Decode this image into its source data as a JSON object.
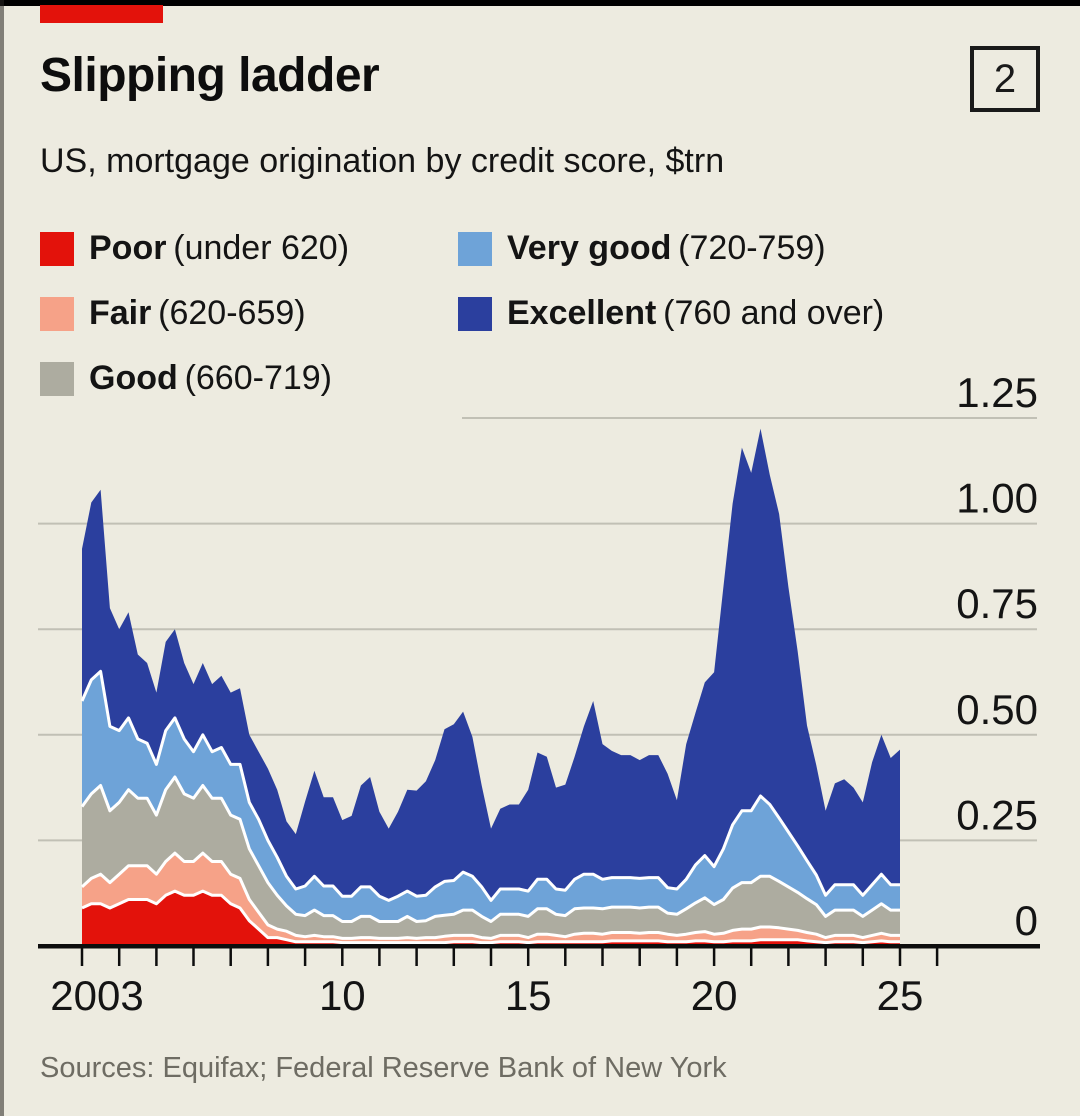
{
  "header": {
    "title": "Slipping ladder",
    "subtitle": "US, mortgage origination by credit score, $trn",
    "figure_number": "2",
    "tag_color": "#E3120B",
    "background_color": "#EDEBE0"
  },
  "source_line": "Sources: Equifax; Federal Reserve Bank of New York",
  "legend": [
    {
      "label": "Poor",
      "range": "(under 620)",
      "color": "#E3120B",
      "col": 0,
      "row": 0
    },
    {
      "label": "Fair",
      "range": "(620-659)",
      "color": "#F6A288",
      "col": 0,
      "row": 1
    },
    {
      "label": "Good",
      "range": "(660-719)",
      "color": "#ADACA0",
      "col": 0,
      "row": 2
    },
    {
      "label": "Very good",
      "range": "(720-759)",
      "color": "#6EA3D8",
      "col": 1,
      "row": 0
    },
    {
      "label": "Excellent",
      "range": "(760 and over)",
      "color": "#2B3F9E",
      "col": 1,
      "row": 1
    }
  ],
  "chart_data": {
    "type": "area",
    "stacked": true,
    "title": "Slipping ladder",
    "subtitle": "US, mortgage origination by credit score, $trn",
    "unit": "$trn per quarter",
    "x_start_year": 2003,
    "x_step_years": 0.25,
    "x_end_year": 2025.0,
    "xlim": [
      2003,
      2026
    ],
    "ylim": [
      0,
      1.25
    ],
    "grid": true,
    "legend_position": "top-left",
    "y_ticks": [
      {
        "v": 1.25,
        "label": "1.25"
      },
      {
        "v": 1.0,
        "label": "1.00"
      },
      {
        "v": 0.75,
        "label": "0.75"
      },
      {
        "v": 0.5,
        "label": "0.50"
      },
      {
        "v": 0.25,
        "label": "0.25"
      },
      {
        "v": 0,
        "label": "0"
      }
    ],
    "x_tick_range": [
      2003,
      2026
    ],
    "x_axis_labels": [
      {
        "year": 2003,
        "label": "2003",
        "dx": 15
      },
      {
        "year": 2010,
        "label": "10",
        "dx": 0
      },
      {
        "year": 2015,
        "label": "15",
        "dx": 0
      },
      {
        "year": 2020,
        "label": "20",
        "dx": 0
      },
      {
        "year": 2025,
        "label": "25",
        "dx": 0
      }
    ],
    "separator_color": "#FFFFFF",
    "series": [
      {
        "name": "Poor (under 620)",
        "color": "#E3120B",
        "values": [
          0.09,
          0.1,
          0.1,
          0.09,
          0.1,
          0.11,
          0.11,
          0.11,
          0.1,
          0.12,
          0.13,
          0.12,
          0.12,
          0.13,
          0.12,
          0.12,
          0.1,
          0.09,
          0.06,
          0.04,
          0.02,
          0.02,
          0.015,
          0.01,
          0.01,
          0.01,
          0.01,
          0.01,
          0.008,
          0.008,
          0.008,
          0.008,
          0.008,
          0.008,
          0.008,
          0.008,
          0.008,
          0.008,
          0.008,
          0.008,
          0.01,
          0.01,
          0.01,
          0.008,
          0.008,
          0.01,
          0.01,
          0.01,
          0.008,
          0.01,
          0.01,
          0.01,
          0.01,
          0.01,
          0.01,
          0.01,
          0.01,
          0.012,
          0.012,
          0.012,
          0.012,
          0.012,
          0.012,
          0.01,
          0.01,
          0.01,
          0.012,
          0.012,
          0.01,
          0.01,
          0.012,
          0.012,
          0.012,
          0.015,
          0.015,
          0.015,
          0.015,
          0.015,
          0.012,
          0.01,
          0.008,
          0.01,
          0.01,
          0.01,
          0.008,
          0.01,
          0.012,
          0.01,
          0.01
        ]
      },
      {
        "name": "Fair (620-659)",
        "color": "#F6A288",
        "values": [
          0.05,
          0.06,
          0.07,
          0.06,
          0.07,
          0.08,
          0.08,
          0.08,
          0.07,
          0.08,
          0.09,
          0.08,
          0.08,
          0.09,
          0.08,
          0.08,
          0.07,
          0.07,
          0.05,
          0.04,
          0.03,
          0.02,
          0.02,
          0.015,
          0.012,
          0.015,
          0.012,
          0.012,
          0.01,
          0.01,
          0.012,
          0.012,
          0.01,
          0.01,
          0.01,
          0.012,
          0.01,
          0.012,
          0.012,
          0.015,
          0.015,
          0.015,
          0.015,
          0.012,
          0.01,
          0.015,
          0.015,
          0.015,
          0.012,
          0.018,
          0.018,
          0.015,
          0.012,
          0.018,
          0.02,
          0.02,
          0.018,
          0.02,
          0.02,
          0.02,
          0.018,
          0.02,
          0.02,
          0.018,
          0.015,
          0.018,
          0.02,
          0.022,
          0.018,
          0.02,
          0.025,
          0.028,
          0.028,
          0.03,
          0.03,
          0.028,
          0.025,
          0.022,
          0.02,
          0.018,
          0.012,
          0.015,
          0.015,
          0.015,
          0.012,
          0.015,
          0.018,
          0.015,
          0.015
        ]
      },
      {
        "name": "Good (660-719)",
        "color": "#ADACA0",
        "values": [
          0.19,
          0.2,
          0.21,
          0.17,
          0.17,
          0.18,
          0.16,
          0.16,
          0.14,
          0.17,
          0.18,
          0.16,
          0.15,
          0.16,
          0.15,
          0.15,
          0.14,
          0.14,
          0.12,
          0.11,
          0.1,
          0.08,
          0.06,
          0.05,
          0.05,
          0.06,
          0.05,
          0.05,
          0.04,
          0.04,
          0.05,
          0.05,
          0.04,
          0.04,
          0.04,
          0.05,
          0.04,
          0.04,
          0.05,
          0.05,
          0.05,
          0.06,
          0.06,
          0.05,
          0.04,
          0.05,
          0.05,
          0.05,
          0.05,
          0.06,
          0.06,
          0.05,
          0.05,
          0.06,
          0.06,
          0.06,
          0.06,
          0.06,
          0.06,
          0.06,
          0.06,
          0.06,
          0.06,
          0.05,
          0.05,
          0.06,
          0.07,
          0.08,
          0.07,
          0.08,
          0.1,
          0.11,
          0.11,
          0.12,
          0.12,
          0.11,
          0.1,
          0.09,
          0.08,
          0.07,
          0.05,
          0.06,
          0.06,
          0.06,
          0.05,
          0.06,
          0.07,
          0.06,
          0.06
        ]
      },
      {
        "name": "Very good (720-759)",
        "color": "#6EA3D8",
        "values": [
          0.25,
          0.27,
          0.27,
          0.2,
          0.17,
          0.17,
          0.14,
          0.13,
          0.12,
          0.14,
          0.14,
          0.13,
          0.11,
          0.12,
          0.11,
          0.12,
          0.12,
          0.13,
          0.11,
          0.11,
          0.1,
          0.09,
          0.07,
          0.06,
          0.07,
          0.08,
          0.07,
          0.07,
          0.06,
          0.06,
          0.07,
          0.07,
          0.06,
          0.05,
          0.06,
          0.06,
          0.06,
          0.06,
          0.07,
          0.08,
          0.08,
          0.09,
          0.08,
          0.07,
          0.05,
          0.06,
          0.06,
          0.06,
          0.06,
          0.07,
          0.07,
          0.06,
          0.06,
          0.07,
          0.08,
          0.08,
          0.07,
          0.07,
          0.07,
          0.07,
          0.07,
          0.07,
          0.07,
          0.06,
          0.06,
          0.07,
          0.09,
          0.1,
          0.09,
          0.12,
          0.15,
          0.17,
          0.17,
          0.19,
          0.17,
          0.15,
          0.13,
          0.11,
          0.09,
          0.07,
          0.05,
          0.06,
          0.06,
          0.06,
          0.05,
          0.06,
          0.07,
          0.06,
          0.06
        ]
      },
      {
        "name": "Excellent (760 and over)",
        "color": "#2B3F9E",
        "values": [
          0.36,
          0.42,
          0.43,
          0.28,
          0.24,
          0.25,
          0.2,
          0.19,
          0.17,
          0.21,
          0.21,
          0.18,
          0.16,
          0.17,
          0.16,
          0.17,
          0.17,
          0.18,
          0.16,
          0.16,
          0.17,
          0.16,
          0.13,
          0.13,
          0.2,
          0.25,
          0.21,
          0.21,
          0.18,
          0.19,
          0.24,
          0.26,
          0.2,
          0.17,
          0.2,
          0.24,
          0.25,
          0.27,
          0.3,
          0.36,
          0.37,
          0.38,
          0.33,
          0.24,
          0.17,
          0.19,
          0.2,
          0.2,
          0.24,
          0.3,
          0.29,
          0.24,
          0.25,
          0.29,
          0.35,
          0.41,
          0.32,
          0.3,
          0.29,
          0.29,
          0.28,
          0.29,
          0.29,
          0.27,
          0.21,
          0.32,
          0.36,
          0.41,
          0.46,
          0.62,
          0.76,
          0.86,
          0.8,
          0.87,
          0.78,
          0.72,
          0.58,
          0.46,
          0.32,
          0.26,
          0.2,
          0.24,
          0.25,
          0.23,
          0.22,
          0.29,
          0.33,
          0.3,
          0.32
        ]
      }
    ]
  }
}
